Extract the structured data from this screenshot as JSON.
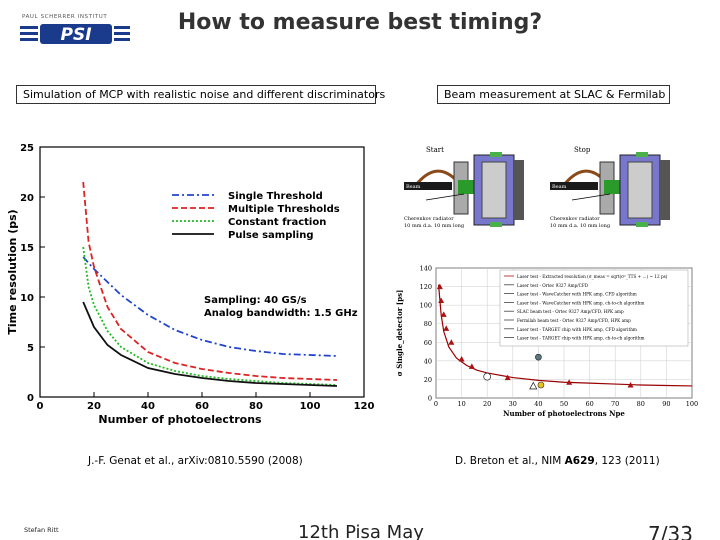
{
  "header": {
    "logo_text": "PAUL SCHERRER INSTITUT",
    "logo_mark": "PSI",
    "title": "How to measure best timing?"
  },
  "left_panel": {
    "label": "Simulation of MCP with realistic noise and different discriminators",
    "reference": "J.-F. Genat et al., arXiv:0810.5590 (2008)",
    "annotation_lines": [
      "Sampling: 40 GS/s",
      "Analog bandwidth: 1.5 GHz"
    ]
  },
  "right_panel": {
    "label": "Beam measurement at SLAC & Fermilab",
    "reference_prefix": "D. Breton et al., NIM ",
    "reference_volume": "A629",
    "reference_suffix": ", 123 (2011)",
    "setup": {
      "start_label": "Start",
      "stop_label": "Stop",
      "beam_label": "Beam",
      "radiator_text_line1": "Cherenkov radiator",
      "radiator_text_line2": "10 mm d.a. 10 mm long"
    }
  },
  "footer": {
    "author": "Stefan Ritt",
    "center": "12th Pisa May",
    "page": "7/33"
  },
  "colors": {
    "single_threshold": "#2244cc",
    "multiple_thresholds": "#dd2222",
    "constant_fraction": "#22bb22",
    "pulse_sampling": "#111111",
    "right_fit": "#990000"
  },
  "chart_data": [
    {
      "type": "line",
      "xlabel": "Number of photoelectrons",
      "ylabel": "Time resolution (ps)",
      "xlim": [
        0,
        120
      ],
      "ylim": [
        0,
        25
      ],
      "xticks": [
        0,
        20,
        40,
        60,
        80,
        100,
        120
      ],
      "yticks": [
        0,
        5,
        10,
        15,
        20,
        25
      ],
      "legend_position": "top-right",
      "series": [
        {
          "name": "Single Threshold",
          "style": "dash-dot",
          "color": "#2244cc",
          "x": [
            16,
            20,
            30,
            40,
            50,
            60,
            70,
            80,
            90,
            100,
            110
          ],
          "y": [
            14,
            12.8,
            10.2,
            8.2,
            6.7,
            5.7,
            5.0,
            4.6,
            4.3,
            4.2,
            4.1
          ]
        },
        {
          "name": "Multiple Thresholds",
          "style": "dashed",
          "color": "#dd2222",
          "x": [
            16,
            18,
            20,
            25,
            30,
            40,
            50,
            60,
            70,
            80,
            90,
            100,
            110
          ],
          "y": [
            21.5,
            15.5,
            13,
            9,
            6.8,
            4.5,
            3.4,
            2.8,
            2.4,
            2.1,
            1.9,
            1.8,
            1.7
          ]
        },
        {
          "name": "Constant fraction",
          "style": "dotted",
          "color": "#22bb22",
          "x": [
            16,
            18,
            20,
            25,
            30,
            40,
            50,
            60,
            70,
            80,
            90,
            100,
            110
          ],
          "y": [
            15,
            11,
            9.2,
            6.6,
            5.0,
            3.4,
            2.6,
            2.1,
            1.8,
            1.6,
            1.4,
            1.3,
            1.2
          ]
        },
        {
          "name": "Pulse sampling",
          "style": "solid",
          "color": "#111111",
          "x": [
            16,
            20,
            25,
            30,
            40,
            50,
            60,
            70,
            80,
            90,
            100,
            110
          ],
          "y": [
            9.5,
            7,
            5.2,
            4.2,
            2.9,
            2.3,
            1.9,
            1.6,
            1.4,
            1.3,
            1.2,
            1.1
          ]
        }
      ]
    },
    {
      "type": "scatter",
      "xlabel": "Number of photoelectrons Npe",
      "ylabel": "σ Single_detector  [ps]",
      "xlim": [
        0,
        100
      ],
      "ylim": [
        0,
        140
      ],
      "xticks": [
        0,
        10,
        20,
        30,
        40,
        50,
        60,
        70,
        80,
        90,
        100
      ],
      "yticks": [
        0,
        20,
        40,
        60,
        80,
        100,
        120,
        140
      ],
      "legend_position": "top-right",
      "legend_entries": [
        "Laser test - Extracted resolution (σ_meas = sqrt(σ²_TTS + ...) ~ 12 ps)",
        "Laser test - Ortec 9327 Amp/CFD",
        "Laser test - WaveCatcher with HPK amp, CFD algorithm",
        "Laser test - WaveCatcher with HPK amp, ch-to-ch algorithm",
        "SLAC beam test - Ortec 9327 Amp/CFD, HPK amp",
        "Fermilab beam test - Ortec 9327 Amp/CFD, HPK amp",
        "Laser test - TARGET chip with HPK amp, CFD algorithm",
        "Laser test - TARGET chip with HPK amp, ch-to-ch algorithm"
      ],
      "fit_curve": {
        "x": [
          1,
          2,
          3,
          5,
          8,
          12,
          16,
          20,
          30,
          40,
          50,
          60,
          70,
          80,
          90,
          100
        ],
        "y": [
          122,
          90,
          72,
          55,
          43,
          35,
          30,
          27,
          22,
          19,
          17,
          16,
          15,
          14,
          13.5,
          13
        ]
      },
      "points": [
        {
          "x": 1.5,
          "y": 120,
          "marker": "triangle-red"
        },
        {
          "x": 2,
          "y": 105,
          "marker": "triangle-red"
        },
        {
          "x": 3,
          "y": 90,
          "marker": "triangle-red"
        },
        {
          "x": 4,
          "y": 75,
          "marker": "triangle-red"
        },
        {
          "x": 6,
          "y": 60,
          "marker": "triangle-red"
        },
        {
          "x": 10,
          "y": 42,
          "marker": "triangle-red"
        },
        {
          "x": 14,
          "y": 34,
          "marker": "triangle-red"
        },
        {
          "x": 28,
          "y": 22,
          "marker": "triangle-red"
        },
        {
          "x": 52,
          "y": 17,
          "marker": "triangle-red"
        },
        {
          "x": 76,
          "y": 14,
          "marker": "triangle-red"
        },
        {
          "x": 20,
          "y": 23,
          "marker": "circle-open"
        },
        {
          "x": 38,
          "y": 13,
          "marker": "triangle-open"
        },
        {
          "x": 41,
          "y": 14,
          "marker": "circle-yellow"
        },
        {
          "x": 40,
          "y": 44,
          "marker": "star"
        }
      ]
    }
  ]
}
